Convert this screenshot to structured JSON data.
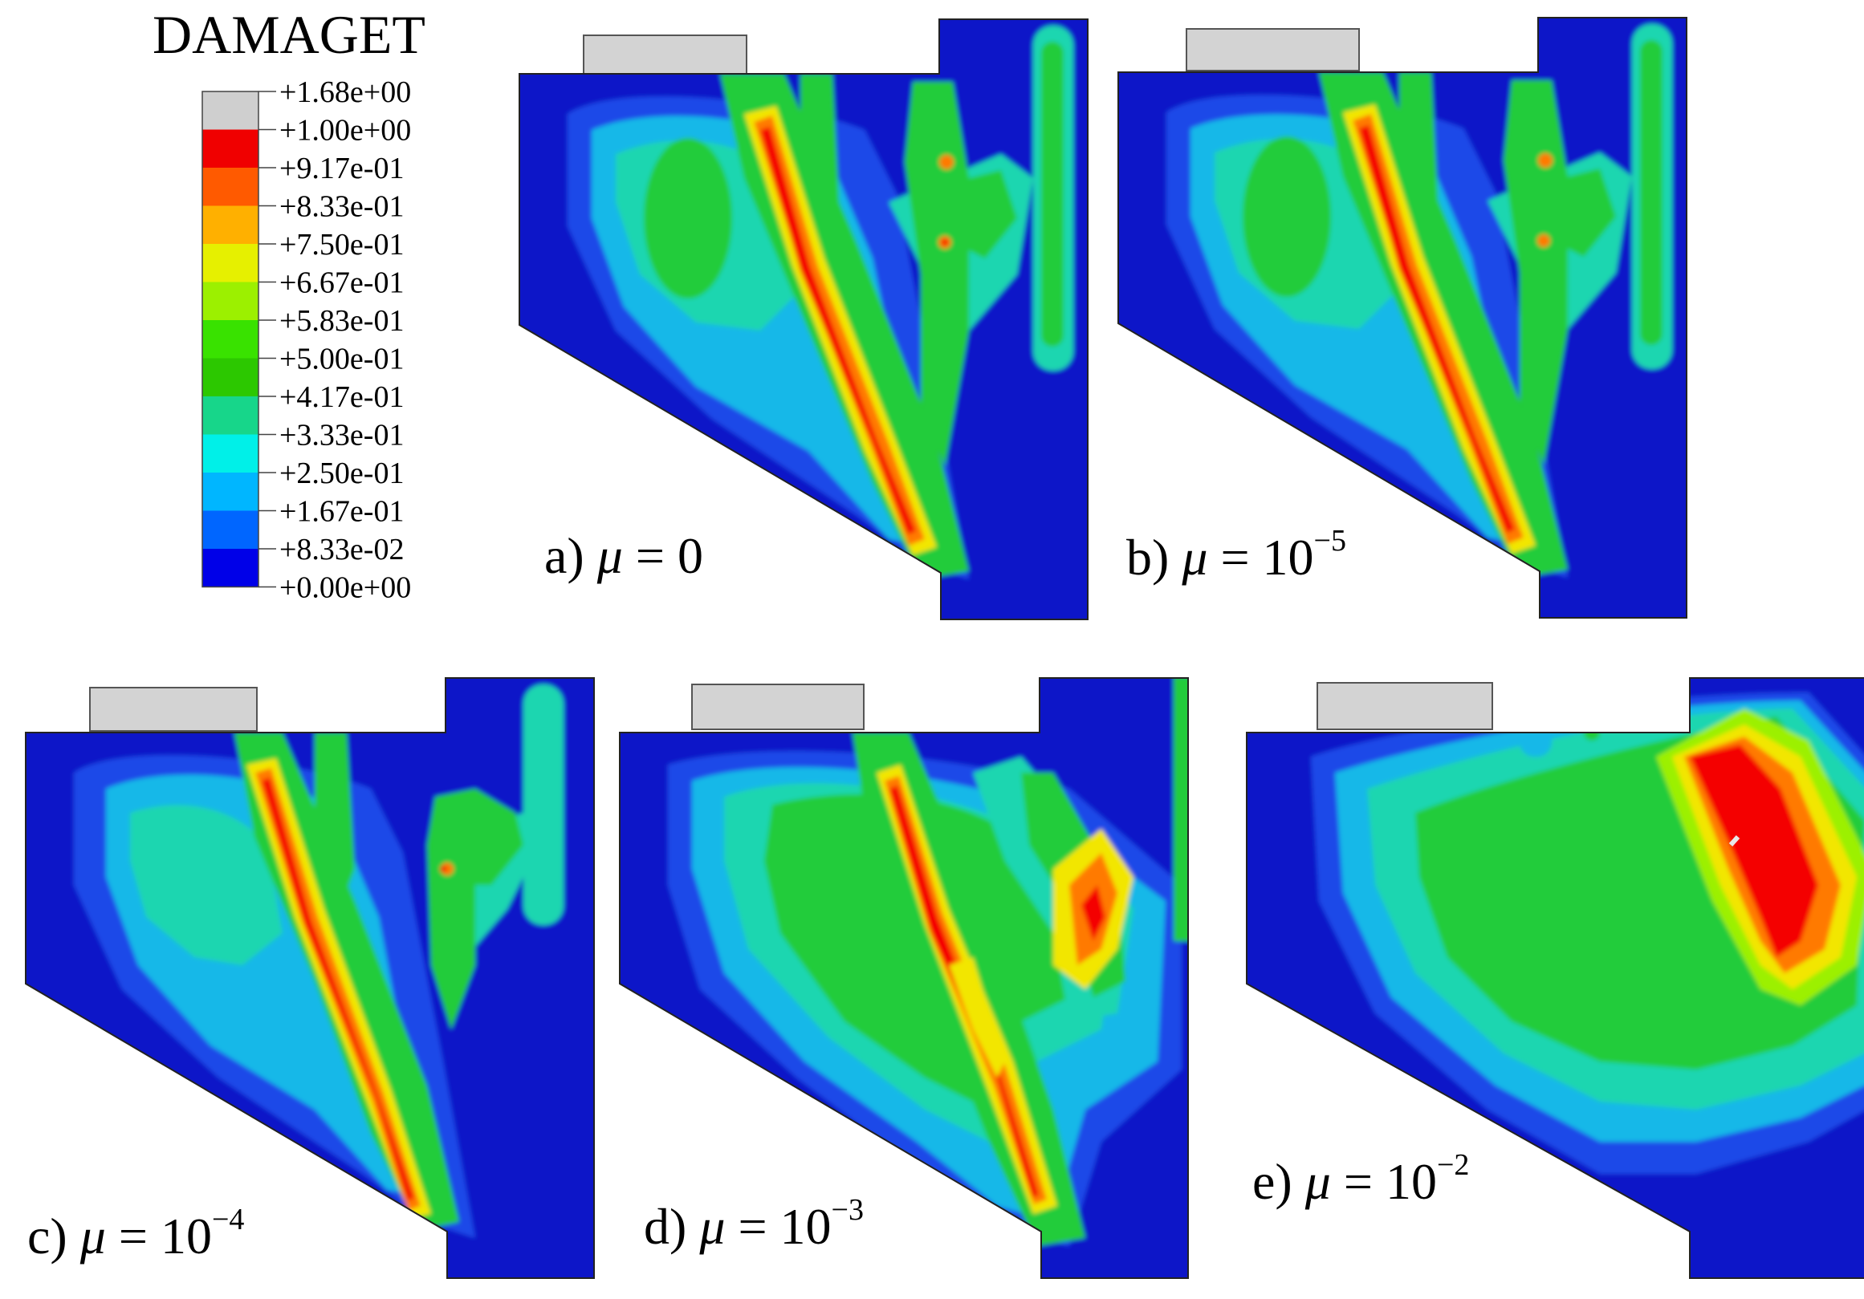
{
  "legend": {
    "title": "DAMAGET",
    "ticks": [
      "+1.68e+00",
      "+1.00e+00",
      "+9.17e-01",
      "+8.33e-01",
      "+7.50e-01",
      "+6.67e-01",
      "+5.83e-01",
      "+5.00e-01",
      "+4.17e-01",
      "+3.33e-01",
      "+2.50e-01",
      "+1.67e-01",
      "+8.33e-02",
      "+0.00e+00"
    ],
    "band_colors": [
      "#cfcfcf",
      "#f00000",
      "#ff5a00",
      "#ffb000",
      "#e6f000",
      "#9cf000",
      "#39e200",
      "#2cc800",
      "#17d68a",
      "#00f0e8",
      "#00b6ff",
      "#0066ff",
      "#0000e8"
    ]
  },
  "palette": {
    "blue": "#0a12c8",
    "blue2": "#1c4ae8",
    "cyan": "#16b8e8",
    "teal": "#1fd6b0",
    "green": "#22cc3a",
    "lime": "#9cf000",
    "yellow": "#f2e600",
    "orange": "#ff7a00",
    "red": "#f40000",
    "gray": "#d3d3d3"
  },
  "panels": [
    {
      "id": "a",
      "prefix": "a) ",
      "mu": "μ",
      "eq": " = ",
      "base": "0",
      "exp": ""
    },
    {
      "id": "b",
      "prefix": "b) ",
      "mu": "μ",
      "eq": " = ",
      "base": "10",
      "exp": "−5"
    },
    {
      "id": "c",
      "prefix": "c) ",
      "mu": "μ",
      "eq": " = ",
      "base": "10",
      "exp": "−4"
    },
    {
      "id": "d",
      "prefix": "d) ",
      "mu": "μ",
      "eq": " = ",
      "base": "10",
      "exp": "−3"
    },
    {
      "id": "e",
      "prefix": "e) ",
      "mu": "μ",
      "eq": " = ",
      "base": "10",
      "exp": "−2"
    }
  ]
}
